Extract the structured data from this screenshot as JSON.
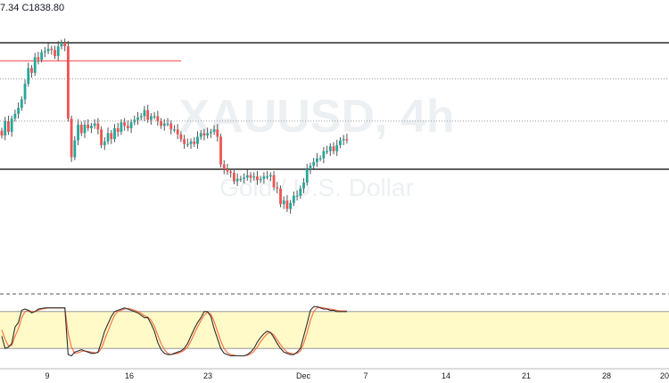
{
  "header": {
    "ohlc_text": "7.34 C1838.80"
  },
  "watermark": {
    "title": "XAUUSD, 4h",
    "subtitle": "Gold / U.S. Dollar"
  },
  "colors": {
    "up": "#26a69a",
    "down": "#ef5350",
    "up_wick": "#6b6b6b",
    "fast": "#2e2e2e",
    "slow": "#ff6b3d",
    "band": "#fffac8",
    "level": "#000000",
    "resistance": "#ff3b3b"
  },
  "chart_data": {
    "type": "candlestick",
    "instrument": "XAUUSD",
    "timeframe": "4h",
    "x_tick_labels": [
      "9",
      "16",
      "23",
      "Dec",
      "7",
      "14",
      "21",
      "28",
      "20"
    ],
    "levels": {
      "solid": [
        1880,
        1775
      ],
      "dotted": [
        1850,
        1815
      ],
      "resistance_short": 1865
    },
    "closes": [
      1803,
      1815,
      1806,
      1817,
      1821,
      1826,
      1833,
      1846,
      1859,
      1855,
      1868,
      1866,
      1872,
      1873,
      1875,
      1874,
      1869,
      1877,
      1880,
      1877,
      1817,
      1785,
      1799,
      1812,
      1805,
      1812,
      1809,
      1811,
      1813,
      1808,
      1795,
      1798,
      1805,
      1800,
      1809,
      1806,
      1814,
      1811,
      1809,
      1814,
      1816,
      1818,
      1819,
      1824,
      1816,
      1819,
      1819,
      1815,
      1811,
      1813,
      1813,
      1808,
      1808,
      1804,
      1800,
      1796,
      1796,
      1798,
      1796,
      1802,
      1805,
      1803,
      1805,
      1806,
      1808,
      1802,
      1779,
      1775,
      1773,
      1772,
      1765,
      1767,
      1767,
      1768,
      1770,
      1768,
      1769,
      1766,
      1767,
      1769,
      1769,
      1770,
      1760,
      1759,
      1746,
      1749,
      1742,
      1747,
      1753,
      1753,
      1759,
      1764,
      1775,
      1778,
      1781,
      1784,
      1784,
      1790,
      1790,
      1794,
      1790,
      1795,
      1799,
      1800,
      1799
    ]
  },
  "stochastic": {
    "fast": [
      40,
      20,
      22,
      28,
      55,
      62,
      82,
      84,
      82,
      78,
      80,
      84,
      85,
      86,
      86,
      86,
      86,
      86,
      86,
      86,
      10,
      8,
      14,
      16,
      18,
      16,
      14,
      12,
      12,
      14,
      30,
      48,
      60,
      72,
      80,
      82,
      84,
      86,
      84,
      82,
      80,
      78,
      74,
      70,
      70,
      60,
      48,
      30,
      18,
      12,
      10,
      10,
      12,
      14,
      16,
      20,
      28,
      40,
      52,
      62,
      70,
      80,
      80,
      72,
      52,
      36,
      20,
      12,
      10,
      8,
      8,
      8,
      8,
      8,
      10,
      14,
      20,
      30,
      38,
      44,
      48,
      46,
      38,
      28,
      20,
      14,
      12,
      10,
      10,
      14,
      20,
      40,
      60,
      82,
      88,
      88,
      86,
      84,
      84,
      82,
      82,
      80,
      80,
      80,
      80
    ],
    "slow": [
      50,
      35,
      24,
      25,
      40,
      52,
      70,
      80,
      82,
      80,
      80,
      82,
      84,
      85,
      86,
      86,
      86,
      86,
      86,
      86,
      45,
      22,
      12,
      13,
      15,
      16,
      15,
      14,
      13,
      13,
      20,
      34,
      48,
      62,
      74,
      80,
      82,
      84,
      85,
      84,
      82,
      80,
      77,
      73,
      71,
      66,
      56,
      42,
      28,
      18,
      12,
      10,
      11,
      12,
      14,
      17,
      22,
      32,
      44,
      55,
      65,
      74,
      79,
      76,
      64,
      48,
      32,
      20,
      13,
      10,
      9,
      8,
      8,
      8,
      9,
      11,
      15,
      22,
      31,
      38,
      44,
      46,
      42,
      34,
      26,
      19,
      14,
      12,
      11,
      12,
      16,
      28,
      45,
      66,
      80,
      86,
      87,
      86,
      85,
      84,
      83,
      82,
      81,
      81,
      81
    ]
  }
}
